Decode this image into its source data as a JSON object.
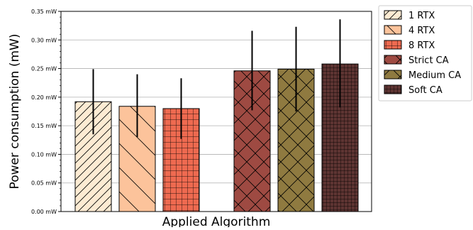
{
  "chart_data": {
    "type": "bar",
    "title": "",
    "xlabel": "Applied Algorithm",
    "ylabel": "Power consumption (mW)",
    "ylim": [
      0,
      0.35
    ],
    "yticks": [
      0.0,
      0.05,
      0.1,
      0.15,
      0.2,
      0.25,
      0.3,
      0.35
    ],
    "ytick_labels": [
      "0.00 mW",
      "0.05 mW",
      "0.10 mW",
      "0.15 mW",
      "0.20 mW",
      "0.25 mW",
      "0.30 mW",
      "0.35 mW"
    ],
    "grid": "horizontal",
    "legend_position": "outside-top-right",
    "series": [
      {
        "name": "1 RTX",
        "value": 0.192,
        "err_low": 0.135,
        "err_high": 0.249,
        "color": "#fdebd3",
        "hatch": "diag-forward"
      },
      {
        "name": "4 RTX",
        "value": 0.184,
        "err_low": 0.13,
        "err_high": 0.24,
        "color": "#fcc39b",
        "hatch": "diag-back"
      },
      {
        "name": "8 RTX",
        "value": 0.18,
        "err_low": 0.127,
        "err_high": 0.233,
        "color": "#ee6a50",
        "hatch": "grid"
      },
      {
        "name": "Strict CA",
        "value": 0.246,
        "err_low": 0.177,
        "err_high": 0.316,
        "color": "#9e4a42",
        "hatch": "cross-diag"
      },
      {
        "name": "Medium CA",
        "value": 0.249,
        "err_low": 0.175,
        "err_high": 0.323,
        "color": "#8f7a40",
        "hatch": "cross-diag"
      },
      {
        "name": "Soft CA",
        "value": 0.258,
        "err_low": 0.182,
        "err_high": 0.336,
        "color": "#5e3432",
        "hatch": "fine-grid"
      }
    ]
  }
}
